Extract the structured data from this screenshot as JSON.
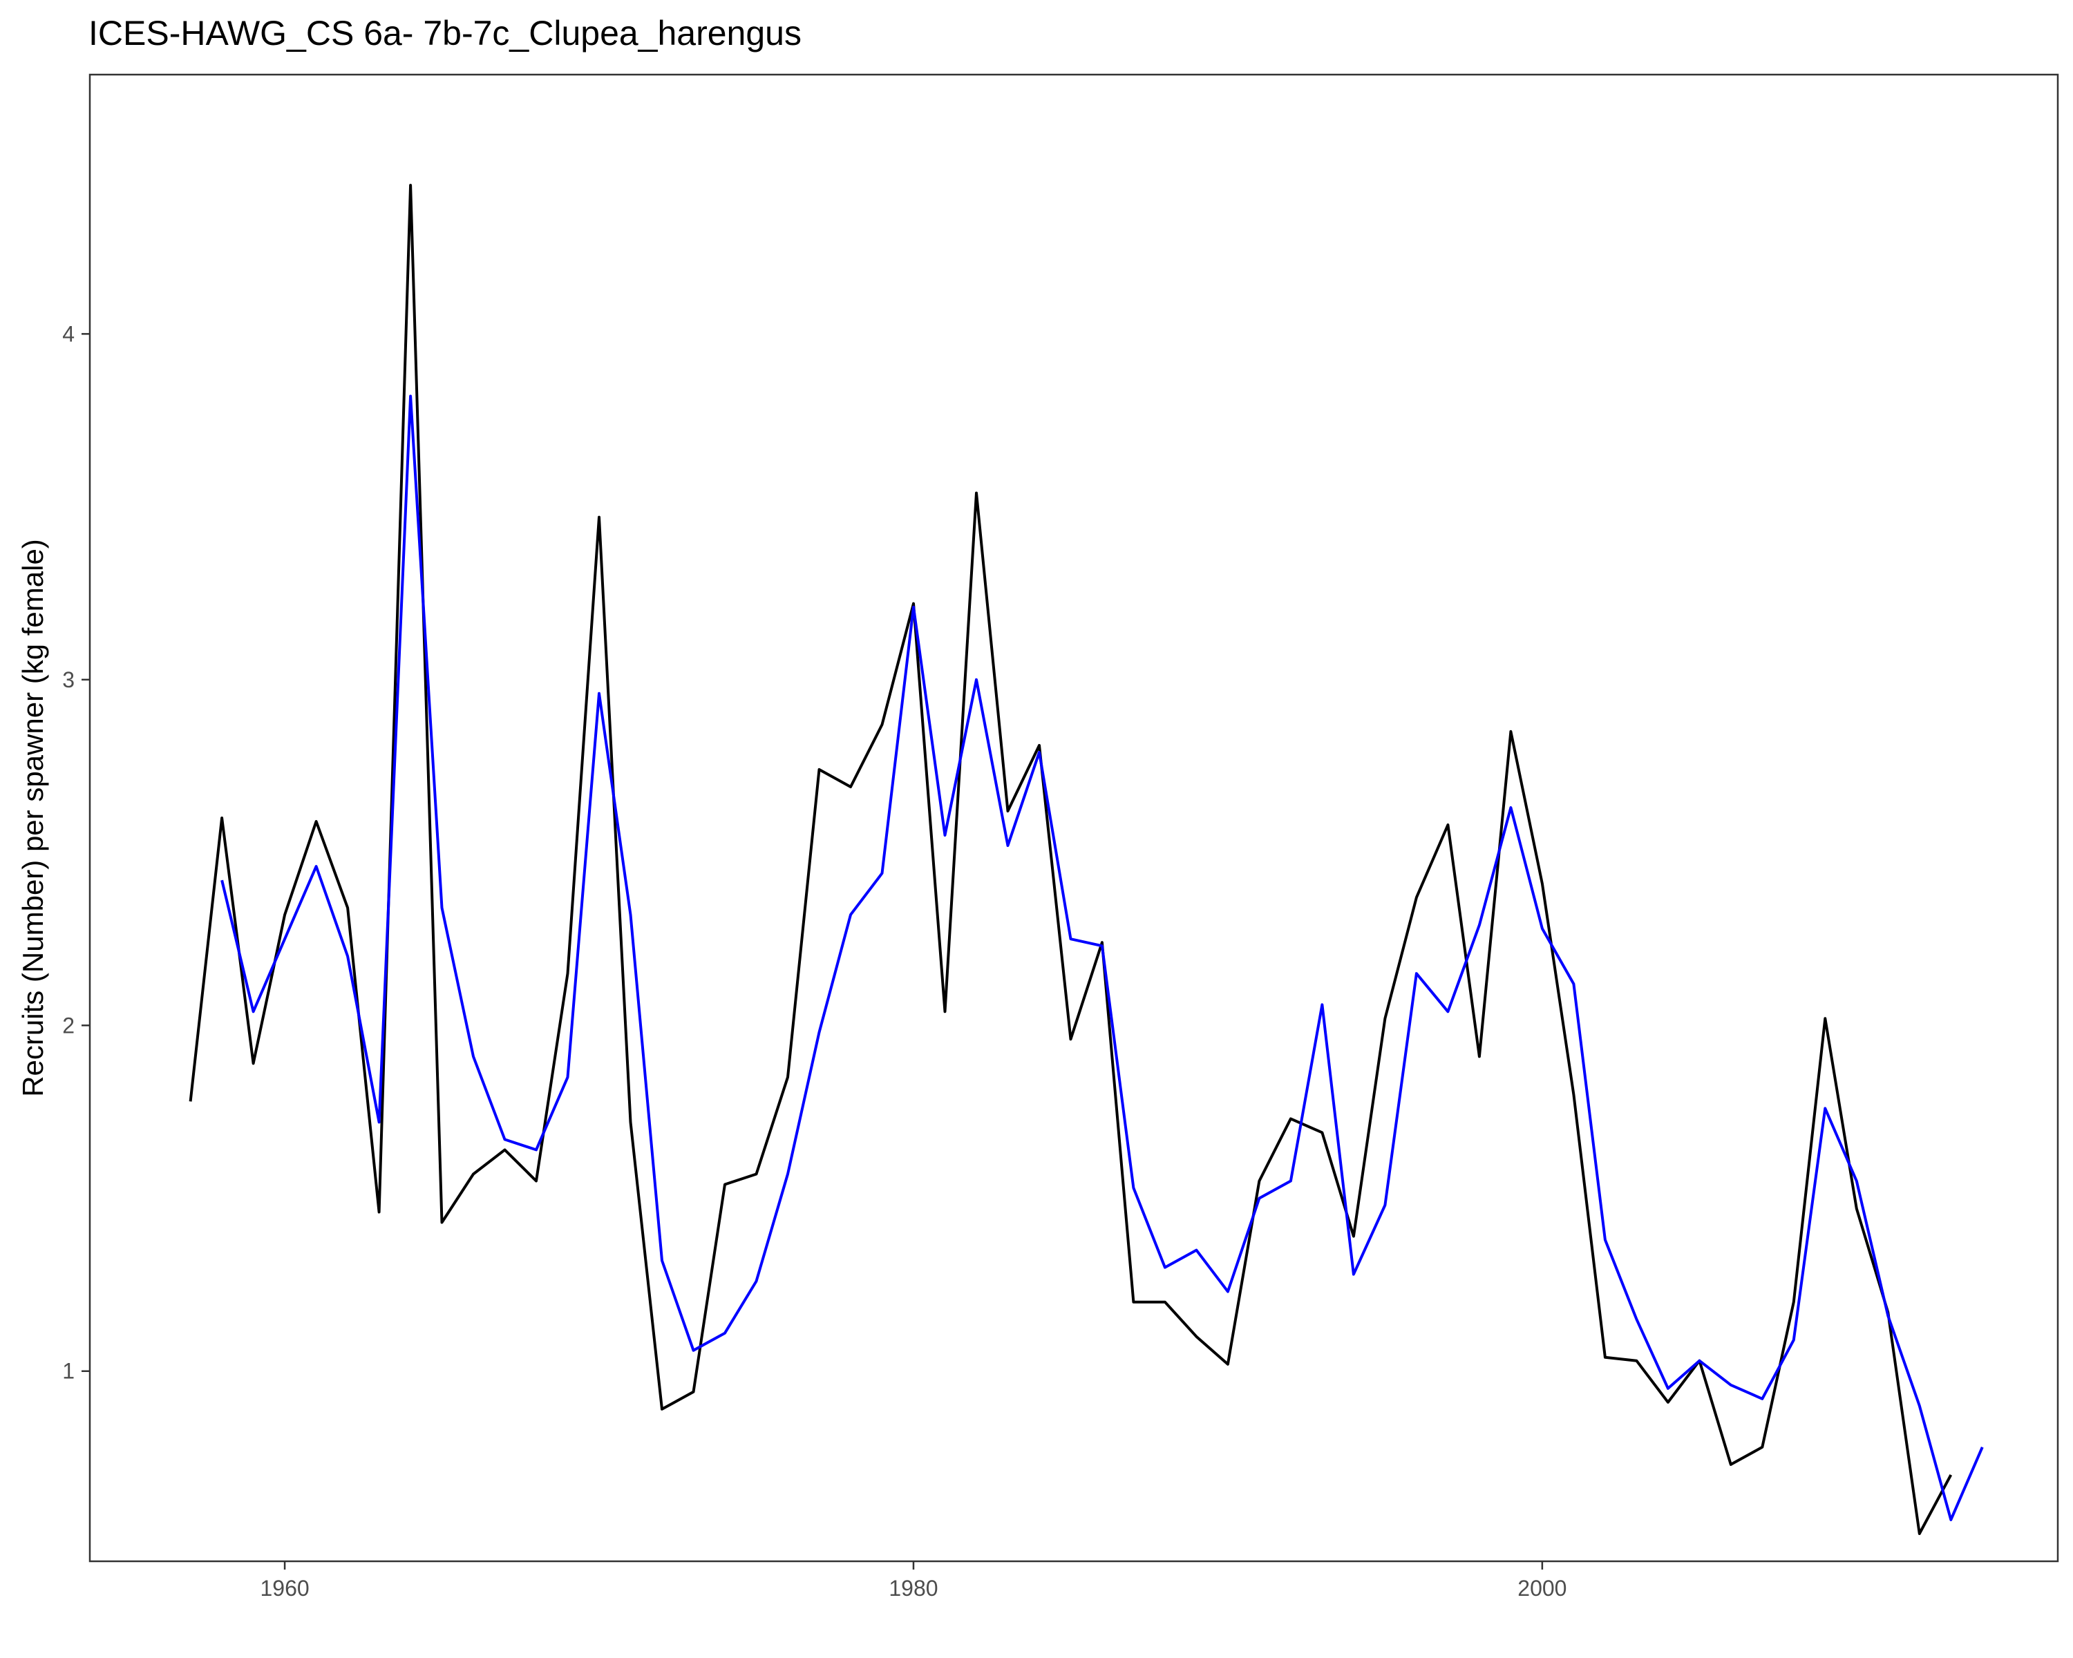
{
  "chart_data": {
    "type": "line",
    "title": "ICES-HAWG_CS 6a- 7b-7c_Clupea_harengus",
    "xlabel": "",
    "ylabel": "Recruits (Number) per spawner (kg female)",
    "xlim": [
      1953.8,
      2016.4
    ],
    "ylim": [
      0.45,
      4.75
    ],
    "x_ticks": [
      1960,
      1980,
      2000
    ],
    "y_ticks": [
      1,
      2,
      3,
      4
    ],
    "grid": false,
    "legend": "none",
    "series": [
      {
        "color": "#000000",
        "x": [
          1957,
          1958,
          1959,
          1960,
          1961,
          1962,
          1963,
          1964,
          1965,
          1966,
          1967,
          1968,
          1969,
          1970,
          1971,
          1972,
          1973,
          1974,
          1975,
          1976,
          1977,
          1978,
          1979,
          1980,
          1981,
          1982,
          1983,
          1984,
          1985,
          1986,
          1987,
          1988,
          1989,
          1990,
          1991,
          1992,
          1993,
          1994,
          1995,
          1996,
          1997,
          1998,
          1999,
          2000,
          2001,
          2002,
          2003,
          2004,
          2005,
          2006,
          2007,
          2008,
          2009,
          2010,
          2011,
          2012,
          2013
        ],
        "y": [
          1.78,
          2.6,
          1.89,
          2.32,
          2.59,
          2.34,
          1.46,
          4.43,
          1.43,
          1.57,
          1.64,
          1.55,
          2.15,
          3.47,
          1.72,
          0.89,
          0.94,
          1.54,
          1.57,
          1.85,
          2.74,
          2.69,
          2.87,
          3.22,
          2.04,
          3.54,
          2.62,
          2.81,
          1.96,
          2.24,
          1.2,
          1.2,
          1.1,
          1.02,
          1.55,
          1.73,
          1.69,
          1.39,
          2.02,
          2.37,
          2.58,
          1.91,
          2.85,
          2.41,
          1.8,
          1.04,
          1.03,
          0.91,
          1.03,
          0.73,
          0.78,
          1.2,
          2.02,
          1.47,
          1.17,
          0.53,
          0.7
        ]
      },
      {
        "color": "#0000ff",
        "x": [
          1958,
          1959,
          1960,
          1961,
          1962,
          1963,
          1964,
          1965,
          1966,
          1967,
          1968,
          1969,
          1970,
          1971,
          1972,
          1973,
          1974,
          1975,
          1976,
          1977,
          1978,
          1979,
          1980,
          1981,
          1982,
          1983,
          1984,
          1985,
          1986,
          1987,
          1988,
          1989,
          1990,
          1991,
          1992,
          1993,
          1994,
          1995,
          1996,
          1997,
          1998,
          1999,
          2000,
          2001,
          2002,
          2003,
          2004,
          2005,
          2006,
          2007,
          2008,
          2009,
          2010,
          2011,
          2012,
          2013,
          2014
        ],
        "y": [
          2.42,
          2.04,
          2.25,
          2.46,
          2.2,
          1.72,
          3.82,
          2.34,
          1.91,
          1.67,
          1.64,
          1.85,
          2.96,
          2.32,
          1.32,
          1.06,
          1.11,
          1.26,
          1.57,
          1.98,
          2.32,
          2.44,
          3.21,
          2.55,
          3.0,
          2.52,
          2.79,
          2.25,
          2.23,
          1.53,
          1.3,
          1.35,
          1.23,
          1.5,
          1.55,
          2.06,
          1.28,
          1.48,
          2.15,
          2.04,
          2.29,
          2.63,
          2.28,
          2.12,
          1.38,
          1.15,
          0.95,
          1.03,
          0.96,
          0.92,
          1.09,
          1.76,
          1.55,
          1.16,
          0.9,
          0.57,
          0.78
        ]
      }
    ]
  }
}
